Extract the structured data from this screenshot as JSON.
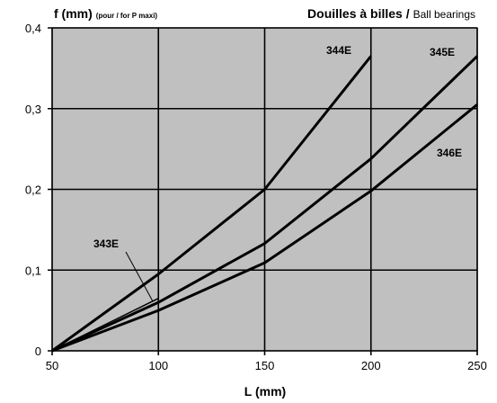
{
  "chart_data": {
    "type": "line",
    "title_bold": "Douilles à billes /",
    "title_light": "Ball bearings",
    "ylabel": "f (mm)",
    "ylabel_note": "(pour / for P maxi)",
    "xlabel": "L (mm)",
    "xlim": [
      50,
      250
    ],
    "ylim": [
      0,
      0.4
    ],
    "x_ticks": [
      50,
      100,
      150,
      200,
      250
    ],
    "y_ticks": [
      0,
      0.1,
      0.2,
      0.3,
      0.4
    ],
    "x_tick_labels": [
      "50",
      "100",
      "150",
      "200",
      "250"
    ],
    "y_tick_labels": [
      "0",
      "0,1",
      "0,2",
      "0,3",
      "0,4"
    ],
    "grid": true,
    "series": [
      {
        "name": "343E",
        "x": [
          50,
          100
        ],
        "y": [
          0,
          0.065
        ]
      },
      {
        "name": "344E",
        "x": [
          50,
          100,
          150,
          200
        ],
        "y": [
          0,
          0.095,
          0.2,
          0.365
        ]
      },
      {
        "name": "345E",
        "x": [
          50,
          100,
          150,
          200,
          250
        ],
        "y": [
          0,
          0.06,
          0.133,
          0.238,
          0.365
        ]
      },
      {
        "name": "346E",
        "x": [
          50,
          100,
          150,
          200,
          250
        ],
        "y": [
          0,
          0.05,
          0.109,
          0.198,
          0.305
        ]
      }
    ],
    "colors": {
      "plot_bg": "#c0c0c0",
      "line": "#000000",
      "grid": "#000000"
    }
  }
}
